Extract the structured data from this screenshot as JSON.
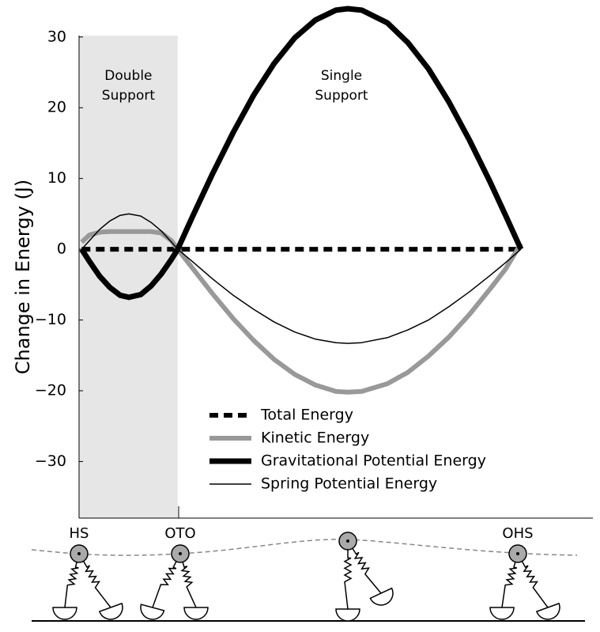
{
  "chart_data": {
    "type": "line",
    "y_label": "Change in Energy (J)",
    "xlim": [
      0,
      100
    ],
    "ylim": [
      -38,
      34
    ],
    "yticks": [
      {
        "value": 30,
        "label": "30"
      },
      {
        "value": 20,
        "label": "20"
      },
      {
        "value": 10,
        "label": "10"
      },
      {
        "value": 0,
        "label": "0"
      },
      {
        "value": -10,
        "label": "−10"
      },
      {
        "value": -20,
        "label": "−20"
      },
      {
        "value": -30,
        "label": "−30"
      }
    ],
    "grid": false,
    "regions": [
      {
        "lines": [
          "Double",
          "Support"
        ],
        "x": [
          0,
          19.2
        ],
        "color": "#e6e6e6"
      }
    ],
    "annotations": [
      {
        "lines": [
          "Single",
          "Support"
        ]
      }
    ],
    "legend": "lower center",
    "x": [
      0.5,
      2,
      4,
      6,
      8,
      9.7,
      12,
      14,
      16,
      18,
      19.2,
      22,
      26,
      30,
      34,
      38,
      42,
      46,
      50,
      52.3,
      55,
      60,
      64,
      68,
      72,
      76,
      80,
      83,
      86
    ],
    "series": [
      {
        "name": "Total Energy",
        "color": "#000000",
        "width": 6,
        "dashed": true,
        "values": [
          0,
          0,
          0,
          0,
          0,
          0,
          0,
          0,
          0,
          0,
          0,
          0,
          0,
          0,
          0,
          0,
          0,
          0,
          0,
          0,
          0,
          0,
          0,
          0,
          0,
          0,
          0,
          0,
          0
        ]
      },
      {
        "name": "Kinetic Energy",
        "color": "#999999",
        "width": 6,
        "dashed": false,
        "values": [
          1,
          2,
          2.4,
          2.5,
          2.5,
          2.5,
          2.5,
          2.5,
          2.3,
          1.2,
          0,
          -2.6,
          -6.3,
          -9.8,
          -12.9,
          -15.6,
          -17.7,
          -19.2,
          -20.1,
          -20.2,
          -20.1,
          -19.0,
          -17.4,
          -15.1,
          -12.4,
          -9.2,
          -5.6,
          -2.8,
          0.8
        ]
      },
      {
        "name": "Gravitational Potential Energy",
        "color": "#000000",
        "width": 7,
        "dashed": false,
        "values": [
          0,
          -1.7,
          -3.8,
          -5.4,
          -6.5,
          -6.8,
          -6.4,
          -5.2,
          -3.5,
          -1.4,
          0,
          4.5,
          10.7,
          16.5,
          21.8,
          26.3,
          29.9,
          32.4,
          33.8,
          34,
          33.8,
          32.0,
          29.2,
          25.5,
          20.8,
          15.4,
          9.5,
          4.8,
          0
        ]
      },
      {
        "name": "Spring Potential Energy",
        "color": "#000000",
        "width": 1.5,
        "dashed": false,
        "values": [
          0,
          1.2,
          2.8,
          4.0,
          4.8,
          5,
          4.7,
          3.8,
          2.6,
          1.0,
          0,
          -1.7,
          -4.2,
          -6.5,
          -8.5,
          -10.3,
          -11.7,
          -12.7,
          -13.2,
          -13.3,
          -13.2,
          -12.5,
          -11.4,
          -10.0,
          -8.1,
          -6.0,
          -3.7,
          -1.9,
          0
        ]
      }
    ]
  },
  "gait_labels": [
    "HS",
    "OTO",
    "OHS"
  ]
}
